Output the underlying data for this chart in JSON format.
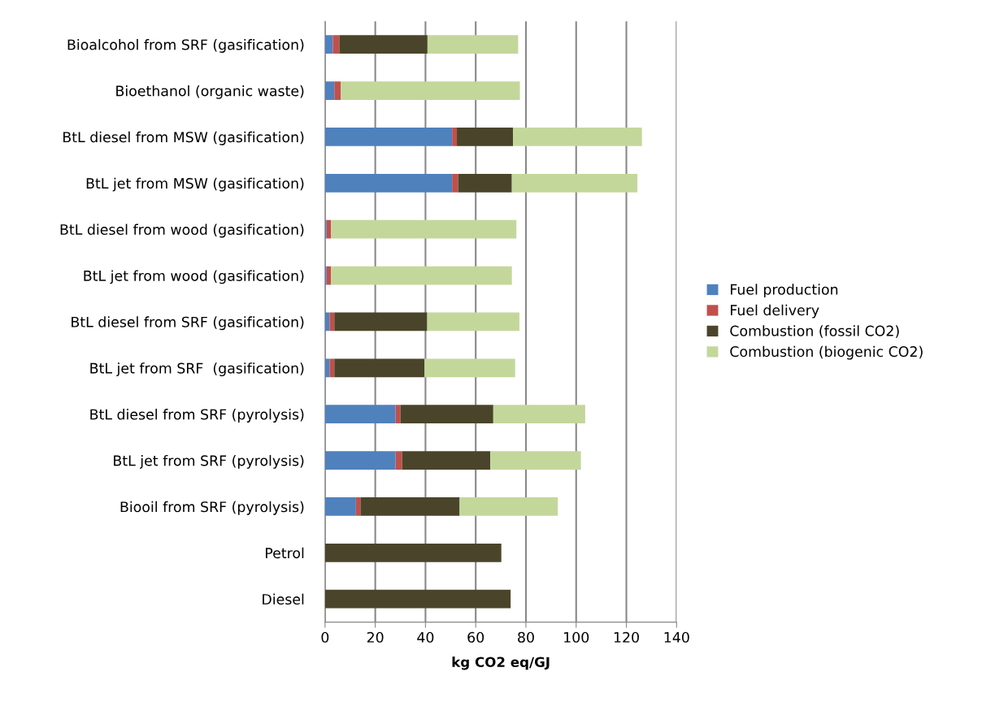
{
  "chart_data": {
    "type": "bar",
    "orientation": "horizontal",
    "stacked": true,
    "xlabel": "kg CO2 eq/GJ",
    "categories": [
      "Bioalcohol from SRF (gasification)",
      "Bioethanol (organic waste)",
      "BtL diesel from MSW (gasification)",
      "BtL jet from MSW (gasification)",
      "BtL diesel from wood (gasification)",
      "BtL jet from wood (gasification)",
      "BtL diesel from SRF (gasification)",
      "BtL jet from SRF  (gasification)",
      "BtL diesel from SRF (pyrolysis)",
      "BtL jet from SRF (pyrolysis)",
      "Biooil from SRF (pyrolysis)",
      "Petrol",
      "Diesel"
    ],
    "series": [
      {
        "name": "Fuel production",
        "color": "#4f81bd",
        "values": [
          3.1,
          3.7,
          50.6,
          50.6,
          0.6,
          0.6,
          1.8,
          1.8,
          28.1,
          28.1,
          12.3,
          0,
          0
        ]
      },
      {
        "name": "Fuel delivery",
        "color": "#c0504d",
        "values": [
          2.6,
          2.5,
          1.9,
          2.4,
          1.8,
          1.8,
          1.9,
          1.9,
          1.9,
          2.6,
          1.8,
          0,
          0
        ]
      },
      {
        "name": "Combustion (fossil CO2)",
        "color": "#4a452a",
        "values": [
          35.1,
          0,
          22.4,
          21.4,
          0,
          0,
          37.0,
          35.9,
          37.0,
          35.1,
          39.5,
          70.2,
          73.9
        ]
      },
      {
        "name": "Combustion (biogenic CO2)",
        "color": "#c4d79b",
        "values": [
          36.1,
          71.4,
          51.3,
          50.0,
          73.8,
          72.0,
          36.7,
          36.1,
          36.6,
          36.1,
          39.1,
          0,
          0
        ]
      }
    ],
    "xlim": [
      0,
      140
    ],
    "xticks": [
      0,
      20,
      40,
      60,
      80,
      100,
      120,
      140
    ],
    "grid": "x",
    "legend": "right"
  }
}
